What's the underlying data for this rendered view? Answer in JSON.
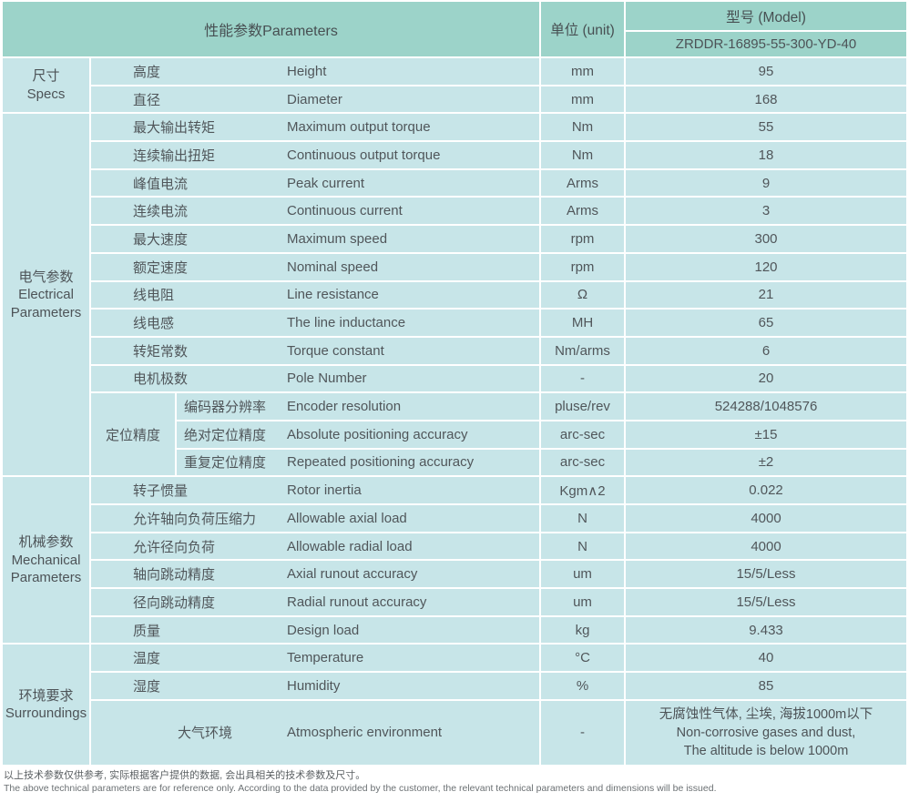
{
  "header": {
    "parameters": "性能参数Parameters",
    "unit": "单位 (unit)",
    "model": "型号 (Model)",
    "model_value": "ZRDDR-16895-55-300-YD-40"
  },
  "group_labels": {
    "specs_cn": "尺寸",
    "specs_en": "Specs",
    "electrical_cn": "电气参数",
    "electrical_en": "Electrical Parameters",
    "mechanical_cn": "机械参数",
    "mechanical_en": "Mechanical Parameters",
    "surroundings_cn": "环境要求",
    "surroundings_en": "Surroundings",
    "positioning": "定位精度"
  },
  "specs_rows": [
    {
      "cn": "高度",
      "en": "Height",
      "unit": "mm",
      "value": "95"
    },
    {
      "cn": "直径",
      "en": "Diameter",
      "unit": "mm",
      "value": "168"
    }
  ],
  "electrical_rows": [
    {
      "cn": "最大输出转矩",
      "en": "Maximum output torque",
      "unit": "Nm",
      "value": "55"
    },
    {
      "cn": "连续输出扭矩",
      "en": "Continuous output torque",
      "unit": "Nm",
      "value": "18"
    },
    {
      "cn": "峰值电流",
      "en": "Peak current",
      "unit": "Arms",
      "value": "9"
    },
    {
      "cn": "连续电流",
      "en": "Continuous current",
      "unit": "Arms",
      "value": "3"
    },
    {
      "cn": "最大速度",
      "en": "Maximum speed",
      "unit": "rpm",
      "value": "300"
    },
    {
      "cn": "额定速度",
      "en": "Nominal speed",
      "unit": "rpm",
      "value": "120"
    },
    {
      "cn": "线电阻",
      "en": "Line resistance",
      "unit": "Ω",
      "value": "21"
    },
    {
      "cn": "线电感",
      "en": "The line inductance",
      "unit": "MH",
      "value": "65"
    },
    {
      "cn": "转矩常数",
      "en": "Torque constant",
      "unit": "Nm/arms",
      "value": "6"
    },
    {
      "cn": "电机极数",
      "en": "Pole Number",
      "unit": "-",
      "value": "20"
    }
  ],
  "positioning_rows": [
    {
      "cn": "编码器分辨率",
      "en": "Encoder resolution",
      "unit": "pluse/rev",
      "value": "524288/1048576"
    },
    {
      "cn": "绝对定位精度",
      "en": "Absolute positioning accuracy",
      "unit": "arc-sec",
      "value": "±15"
    },
    {
      "cn": "重复定位精度",
      "en": "Repeated positioning accuracy",
      "unit": "arc-sec",
      "value": "±2"
    }
  ],
  "mechanical_rows": [
    {
      "cn": "转子惯量",
      "en": "Rotor inertia",
      "unit": "Kgm∧2",
      "value": "0.022"
    },
    {
      "cn": "允许轴向负荷压缩力",
      "en": "Allowable axial load",
      "unit": "N",
      "value": "4000"
    },
    {
      "cn": "允许径向负荷",
      "en": "Allowable radial load",
      "unit": "N",
      "value": "4000"
    },
    {
      "cn": "轴向跳动精度",
      "en": "Axial runout accuracy",
      "unit": "um",
      "value": "15/5/Less"
    },
    {
      "cn": "径向跳动精度",
      "en": "Radial runout accuracy",
      "unit": "um",
      "value": "15/5/Less"
    },
    {
      "cn": "质量",
      "en": "Design load",
      "unit": "kg",
      "value": "9.433"
    }
  ],
  "surroundings_rows": [
    {
      "cn": "温度",
      "en": "Temperature",
      "unit": "°C",
      "value": "40"
    },
    {
      "cn": "湿度",
      "en": "Humidity",
      "unit": "%",
      "value": "85"
    }
  ],
  "atmospheric": {
    "cn": "大气环境",
    "en": "Atmospheric environment",
    "unit": "-",
    "line1": "无腐蚀性气体, 尘埃, 海拔1000m以下",
    "line2": "Non-corrosive gases and dust,",
    "line3": "The altitude is below 1000m"
  },
  "footer": {
    "cn": "以上技术参数仅供参考, 实际根据客户提供的数据, 会出具相关的技术参数及尺寸。",
    "en": "The above technical parameters are for reference only. According to the data provided by the customer, the relevant technical parameters and dimensions will be issued."
  },
  "colors": {
    "header_teal": "#9cd3c9",
    "cell_light": "#c7e5e8",
    "gridline": "#ffffff",
    "text": "#4d5357"
  }
}
